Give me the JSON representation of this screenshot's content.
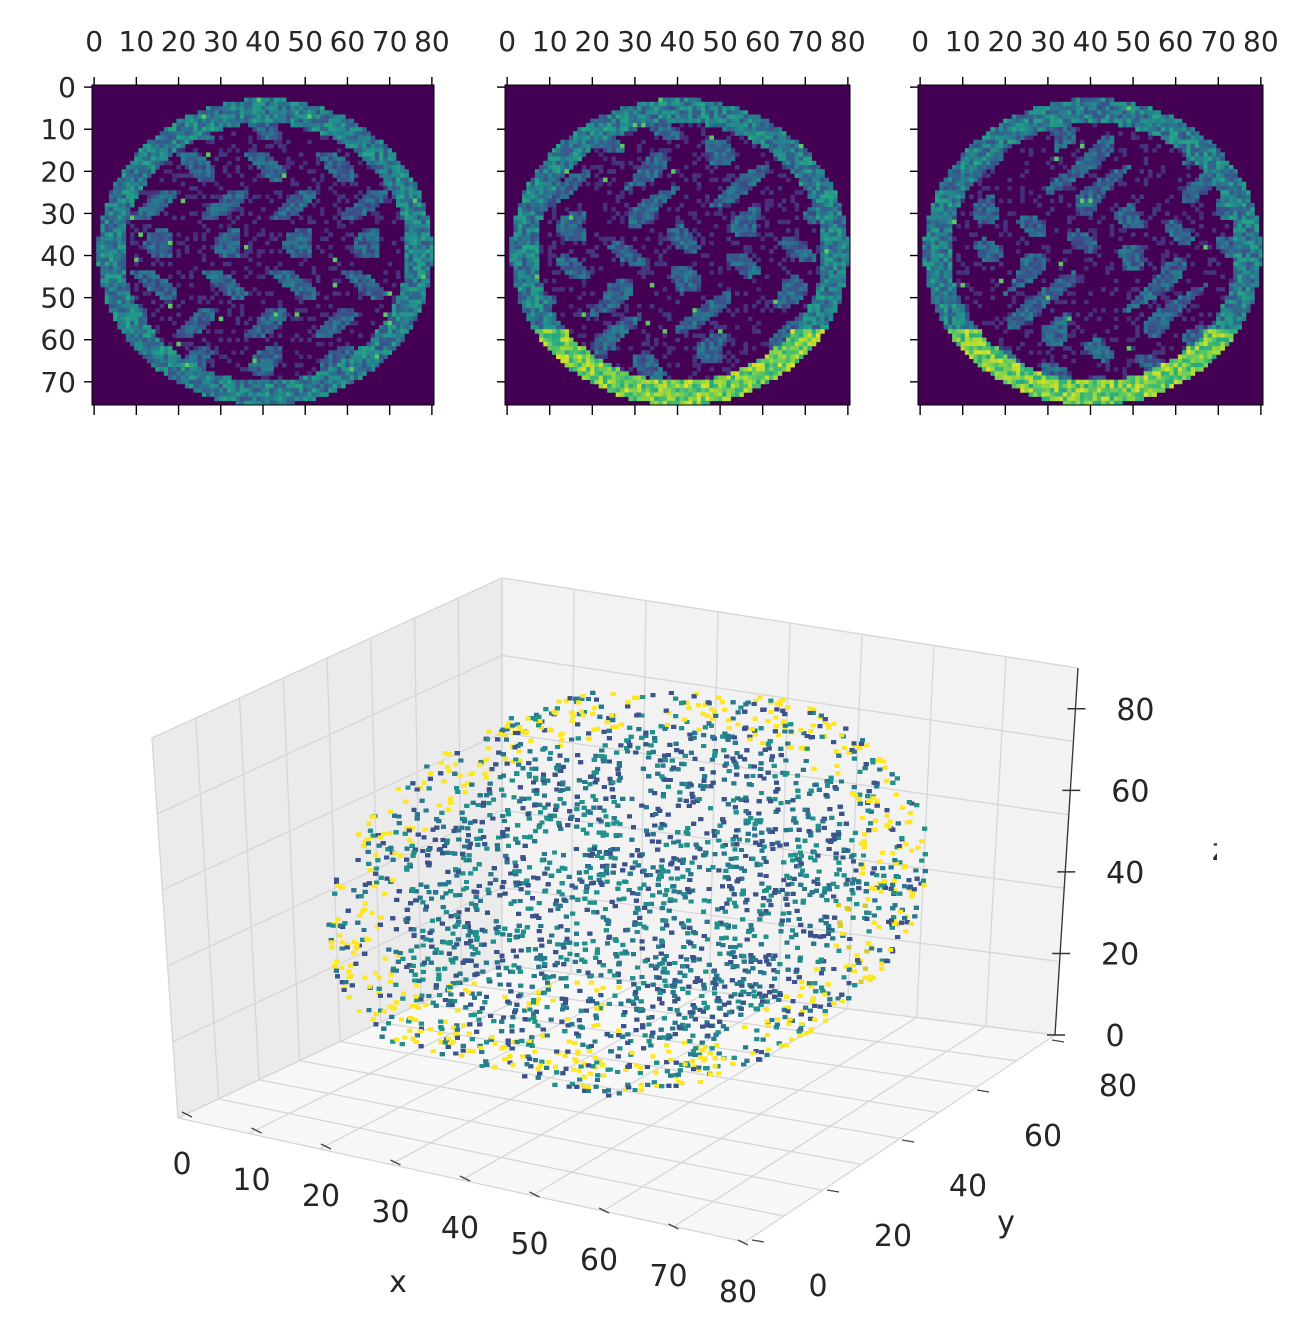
{
  "chart_data": [
    {
      "type": "heatmap",
      "panel": "slice-1",
      "colormap": "viridis",
      "x_ticks": [
        "0",
        "10",
        "20",
        "30",
        "40",
        "50",
        "60",
        "70",
        "80"
      ],
      "y_ticks": [
        "0",
        "10",
        "20",
        "30",
        "40",
        "50",
        "60",
        "70"
      ],
      "x_range": [
        0,
        81
      ],
      "y_range": [
        0,
        76
      ],
      "x_axis_position": "top",
      "grid": false
    },
    {
      "type": "heatmap",
      "panel": "slice-2",
      "colormap": "viridis",
      "x_ticks": [
        "0",
        "10",
        "20",
        "30",
        "40",
        "50",
        "60",
        "70",
        "80"
      ],
      "x_range": [
        0,
        81
      ],
      "y_range": [
        0,
        76
      ],
      "x_axis_position": "top",
      "grid": false
    },
    {
      "type": "heatmap",
      "panel": "slice-3",
      "colormap": "viridis",
      "x_ticks": [
        "0",
        "10",
        "20",
        "30",
        "40",
        "50",
        "60",
        "70",
        "80"
      ],
      "x_range": [
        0,
        81
      ],
      "y_range": [
        0,
        76
      ],
      "x_axis_position": "top",
      "grid": false
    },
    {
      "type": "scatter",
      "panel": "voxels-3d",
      "projection": "3d",
      "colormap": "viridis",
      "xlabel": "x",
      "ylabel": "y",
      "zlabel": "z",
      "x_ticks": [
        "0",
        "10",
        "20",
        "30",
        "40",
        "50",
        "60",
        "70",
        "80"
      ],
      "y_ticks": [
        "0",
        "20",
        "40",
        "60",
        "80"
      ],
      "z_ticks": [
        "0",
        "20",
        "40",
        "60",
        "80"
      ],
      "xlim": [
        0,
        80
      ],
      "ylim": [
        0,
        80
      ],
      "zlim": [
        0,
        90
      ],
      "grid": true
    }
  ],
  "colors": {
    "viridis_dark": "#440154",
    "viridis_blue": "#3b528b",
    "viridis_teal": "#21918c",
    "viridis_green": "#5ec962",
    "viridis_yellow": "#fde725",
    "pane_back": "#f2f2f2",
    "pane_side": "#ebebeb",
    "pane_floor": "#f7f7f7",
    "grid": "#d6d6d6"
  }
}
